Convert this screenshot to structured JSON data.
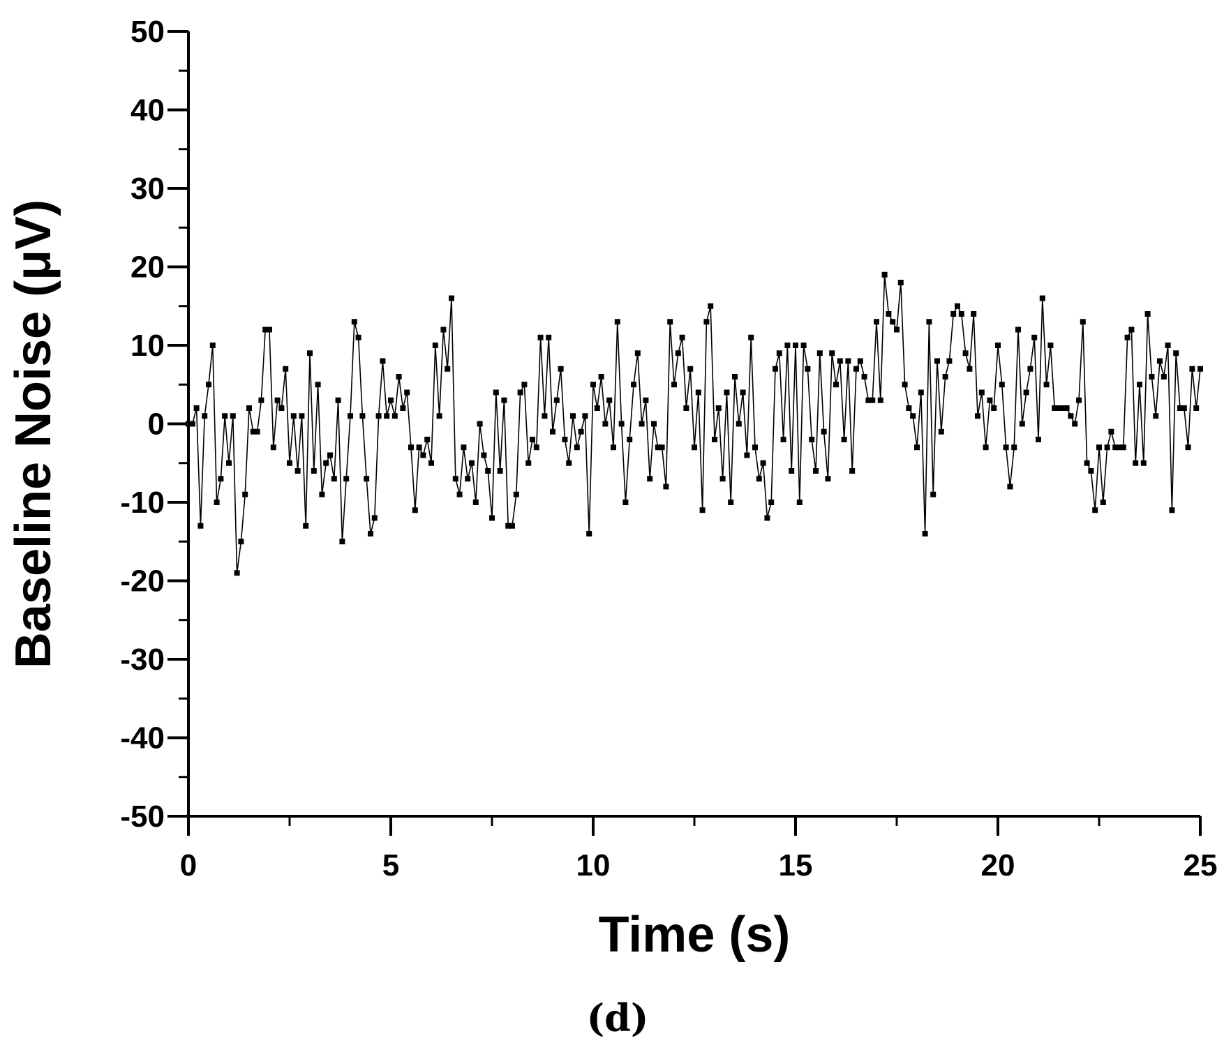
{
  "chart_data": {
    "type": "line",
    "xlabel": "Time (s)",
    "ylabel": "Baseline Noise (μV)",
    "panel_label": "(d)",
    "xlim": [
      0,
      25
    ],
    "ylim": [
      -50,
      50
    ],
    "x_ticks": [
      0,
      5,
      10,
      15,
      20,
      25
    ],
    "y_ticks": [
      -50,
      -40,
      -30,
      -20,
      -10,
      0,
      10,
      20,
      30,
      40,
      50
    ],
    "x_tick_labels": [
      "0",
      "5",
      "10",
      "15",
      "20",
      "25"
    ],
    "y_tick_labels": [
      "-50",
      "-40",
      "-30",
      "-20",
      "-10",
      "0",
      "10",
      "20",
      "30",
      "40",
      "50"
    ],
    "marker": "square",
    "color": "#000000",
    "grid": false,
    "legend": "none",
    "series": [
      {
        "dx": 0.1,
        "x0": 0,
        "values": [
          0,
          0,
          2,
          -13,
          1,
          5,
          10,
          -10,
          -7,
          1,
          -5,
          1,
          -19,
          -15,
          -9,
          2,
          -1,
          -1,
          3,
          12,
          12,
          -3,
          3,
          2,
          7,
          -5,
          1,
          -6,
          1,
          -13,
          9,
          -6,
          5,
          -9,
          -5,
          -4,
          -7,
          3,
          -15,
          -7,
          1,
          13,
          11,
          1,
          -7,
          -14,
          -12,
          1,
          8,
          1,
          3,
          1,
          6,
          2,
          4,
          -3,
          -11,
          -3,
          -4,
          -2,
          -5,
          10,
          1,
          12,
          7,
          16,
          -7,
          -9,
          -3,
          -7,
          -5,
          -10,
          0,
          -4,
          -6,
          -12,
          4,
          -6,
          3,
          -13,
          -13,
          -9,
          4,
          5,
          -5,
          -2,
          -3,
          11,
          1,
          11,
          -1,
          3,
          7,
          -2,
          -5,
          1,
          -3,
          -1,
          1,
          -14,
          5,
          2,
          6,
          0,
          3,
          -3,
          13,
          0,
          -10,
          -2,
          5,
          9,
          0,
          3,
          -7,
          0,
          -3,
          -3,
          -8,
          13,
          5,
          9,
          11,
          2,
          7,
          -3,
          4,
          -11,
          13,
          15,
          -2,
          2,
          -7,
          4,
          -10,
          6,
          0,
          4,
          -4,
          11,
          -3,
          -7,
          -5,
          -12,
          -10,
          7,
          9,
          -2,
          10,
          -6,
          10,
          -10,
          10,
          7,
          -2,
          -6,
          9,
          -1,
          -7,
          9,
          5,
          8,
          -2,
          8,
          -6,
          7,
          8,
          6,
          3,
          3,
          13,
          3,
          19,
          14,
          13,
          12,
          18,
          5,
          2,
          1,
          -3,
          4,
          -14,
          13,
          -9,
          8,
          -1,
          6,
          8,
          14,
          15,
          14,
          9,
          7,
          14,
          1,
          4,
          -3,
          3,
          2,
          10,
          5,
          -3,
          -8,
          -3,
          12,
          0,
          4,
          7,
          11,
          -2,
          16,
          5,
          10,
          2,
          2,
          2,
          2,
          1,
          0,
          3,
          13,
          -5,
          -6,
          -11,
          -3,
          -10,
          -3,
          -1,
          -3,
          -3,
          -3,
          11,
          12,
          -5,
          5,
          -5,
          14,
          6,
          1,
          8,
          6,
          10,
          -11,
          9,
          2,
          2,
          -3,
          7,
          2,
          7
        ]
      }
    ]
  }
}
